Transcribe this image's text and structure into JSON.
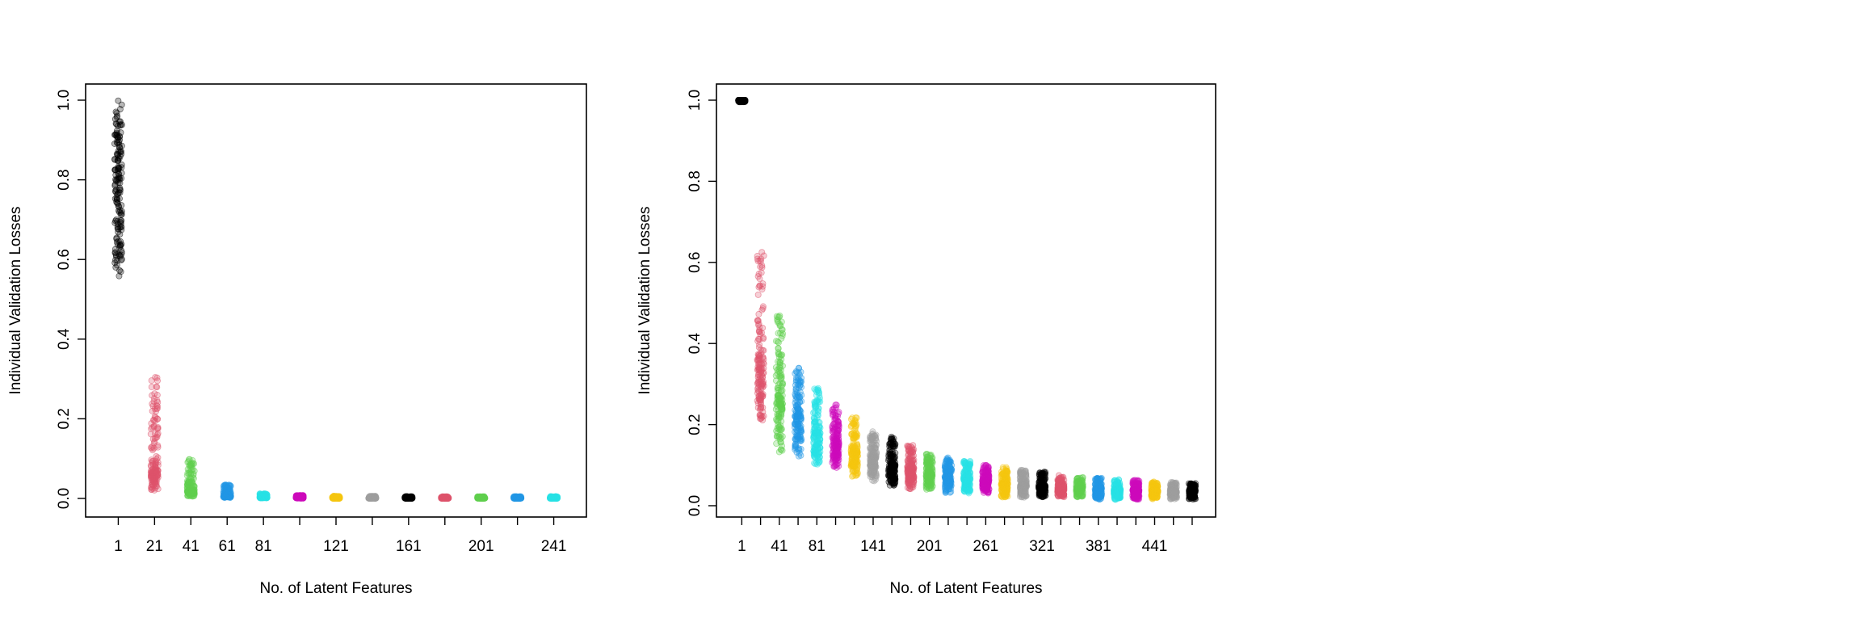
{
  "chart_data": [
    {
      "type": "scatter",
      "xlabel": "No. of Latent Features",
      "ylabel": "Individual Validation Losses",
      "ylim": [
        0.0,
        1.0
      ],
      "yticks": [
        "0.0",
        "0.2",
        "0.4",
        "0.6",
        "0.8",
        "1.0"
      ],
      "xtick_labels": [
        "1",
        "21",
        "41",
        "61",
        "81",
        "121",
        "161",
        "201",
        "241"
      ],
      "grid": false,
      "series": [
        {
          "x": 1,
          "color": "#000000",
          "min": 0.55,
          "max": 1.0,
          "median": 0.8
        },
        {
          "x": 21,
          "color": "#DF536B",
          "min": 0.02,
          "max": 0.32,
          "median": 0.07
        },
        {
          "x": 41,
          "color": "#61D04F",
          "min": 0.005,
          "max": 0.1,
          "median": 0.02
        },
        {
          "x": 61,
          "color": "#2297E6",
          "min": 0.002,
          "max": 0.035,
          "median": 0.008
        },
        {
          "x": 81,
          "color": "#28E2E5",
          "min": 0.001,
          "max": 0.012,
          "median": 0.003
        },
        {
          "x": 101,
          "color": "#CD0BBC",
          "min": 0.0,
          "max": 0.008,
          "median": 0.002
        },
        {
          "x": 121,
          "color": "#F5C710",
          "min": 0.0,
          "max": 0.006,
          "median": 0.001
        },
        {
          "x": 141,
          "color": "#9E9E9E",
          "min": 0.0,
          "max": 0.006,
          "median": 0.001
        },
        {
          "x": 161,
          "color": "#000000",
          "min": 0.0,
          "max": 0.005,
          "median": 0.001
        },
        {
          "x": 181,
          "color": "#DF536B",
          "min": 0.0,
          "max": 0.005,
          "median": 0.001
        },
        {
          "x": 201,
          "color": "#61D04F",
          "min": 0.0,
          "max": 0.005,
          "median": 0.001
        },
        {
          "x": 221,
          "color": "#2297E6",
          "min": 0.0,
          "max": 0.005,
          "median": 0.001
        },
        {
          "x": 241,
          "color": "#28E2E5",
          "min": 0.0,
          "max": 0.005,
          "median": 0.001
        }
      ]
    },
    {
      "type": "scatter",
      "xlabel": "No. of Latent Features",
      "ylabel": "Individual Validation Losses",
      "ylim": [
        0.0,
        1.0
      ],
      "yticks": [
        "0.0",
        "0.2",
        "0.4",
        "0.6",
        "0.8",
        "1.0"
      ],
      "xtick_labels": [
        "1",
        "41",
        "81",
        "141",
        "201",
        "261",
        "321",
        "381",
        "441"
      ],
      "grid": false,
      "series": [
        {
          "x": 1,
          "color": "#000000",
          "min": 0.995,
          "max": 1.0,
          "median": 1.0
        },
        {
          "x": 21,
          "color": "#DF536B",
          "min": 0.2,
          "max": 0.63,
          "median": 0.36
        },
        {
          "x": 41,
          "color": "#61D04F",
          "min": 0.13,
          "max": 0.47,
          "median": 0.27
        },
        {
          "x": 61,
          "color": "#2297E6",
          "min": 0.12,
          "max": 0.34,
          "median": 0.22
        },
        {
          "x": 81,
          "color": "#28E2E5",
          "min": 0.1,
          "max": 0.29,
          "median": 0.18
        },
        {
          "x": 101,
          "color": "#CD0BBC",
          "min": 0.09,
          "max": 0.25,
          "median": 0.16
        },
        {
          "x": 121,
          "color": "#F5C710",
          "min": 0.07,
          "max": 0.22,
          "median": 0.13
        },
        {
          "x": 141,
          "color": "#9E9E9E",
          "min": 0.06,
          "max": 0.19,
          "median": 0.12
        },
        {
          "x": 161,
          "color": "#000000",
          "min": 0.05,
          "max": 0.17,
          "median": 0.1
        },
        {
          "x": 181,
          "color": "#DF536B",
          "min": 0.04,
          "max": 0.15,
          "median": 0.09
        },
        {
          "x": 201,
          "color": "#61D04F",
          "min": 0.04,
          "max": 0.13,
          "median": 0.08
        },
        {
          "x": 221,
          "color": "#2297E6",
          "min": 0.03,
          "max": 0.12,
          "median": 0.07
        },
        {
          "x": 241,
          "color": "#28E2E5",
          "min": 0.03,
          "max": 0.11,
          "median": 0.065
        },
        {
          "x": 261,
          "color": "#CD0BBC",
          "min": 0.03,
          "max": 0.1,
          "median": 0.06
        },
        {
          "x": 281,
          "color": "#F5C710",
          "min": 0.02,
          "max": 0.095,
          "median": 0.055
        },
        {
          "x": 301,
          "color": "#9E9E9E",
          "min": 0.02,
          "max": 0.09,
          "median": 0.05
        },
        {
          "x": 321,
          "color": "#000000",
          "min": 0.02,
          "max": 0.085,
          "median": 0.048
        },
        {
          "x": 341,
          "color": "#DF536B",
          "min": 0.02,
          "max": 0.075,
          "median": 0.045
        },
        {
          "x": 361,
          "color": "#61D04F",
          "min": 0.02,
          "max": 0.07,
          "median": 0.043
        },
        {
          "x": 381,
          "color": "#2297E6",
          "min": 0.015,
          "max": 0.068,
          "median": 0.04
        },
        {
          "x": 401,
          "color": "#28E2E5",
          "min": 0.015,
          "max": 0.065,
          "median": 0.038
        },
        {
          "x": 421,
          "color": "#CD0BBC",
          "min": 0.015,
          "max": 0.063,
          "median": 0.037
        },
        {
          "x": 441,
          "color": "#F5C710",
          "min": 0.015,
          "max": 0.06,
          "median": 0.036
        },
        {
          "x": 461,
          "color": "#9E9E9E",
          "min": 0.015,
          "max": 0.058,
          "median": 0.035
        },
        {
          "x": 481,
          "color": "#000000",
          "min": 0.015,
          "max": 0.055,
          "median": 0.034
        }
      ]
    }
  ]
}
